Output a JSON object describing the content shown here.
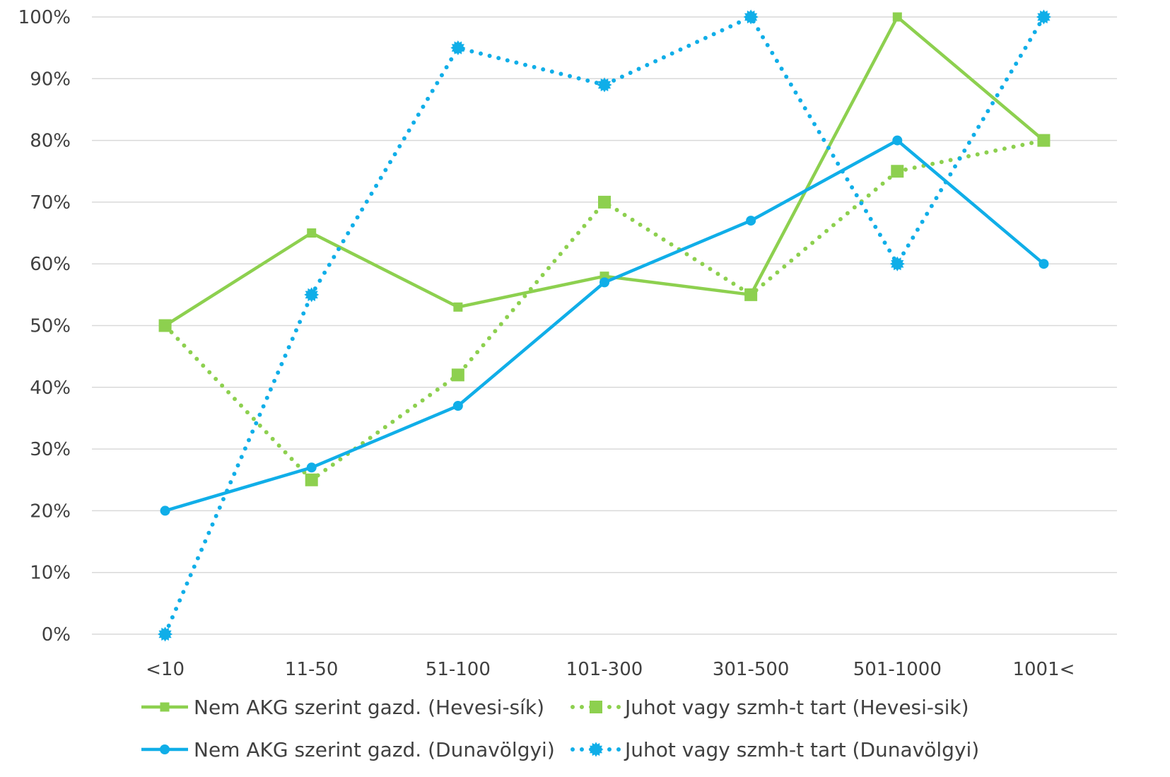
{
  "chart_data": {
    "type": "line",
    "title": "",
    "xlabel": "",
    "ylabel": "",
    "categories": [
      "<10",
      "11-50",
      "51-100",
      "101-300",
      "301-500",
      "501-1000",
      "1001<"
    ],
    "ylim": [
      0,
      100
    ],
    "y_ticks": [
      "0%",
      "10%",
      "20%",
      "30%",
      "40%",
      "50%",
      "60%",
      "70%",
      "80%",
      "90%",
      "100%"
    ],
    "grid": "horizontal",
    "legend_position": "bottom",
    "series": [
      {
        "name": "Nem AKG szerint gazd. (Hevesi-sík)",
        "values": [
          50,
          65,
          53,
          58,
          55,
          100,
          80
        ],
        "color": "#8DD04F",
        "line": "solid",
        "marker": "square-small"
      },
      {
        "name": "Juhot vagy szmh-t tart (Hevesi-sik)",
        "values": [
          50,
          25,
          42,
          70,
          55,
          75,
          80
        ],
        "color": "#8DD04F",
        "line": "dotted",
        "marker": "square"
      },
      {
        "name": "Nem AKG szerint gazd. (Dunavölgyi)",
        "values": [
          20,
          27,
          37,
          57,
          67,
          80,
          60
        ],
        "color": "#10AEE8",
        "line": "solid",
        "marker": "circle"
      },
      {
        "name": "Juhot vagy szmh-t tart (Dunavölgyi)",
        "values": [
          0,
          55,
          95,
          89,
          100,
          60,
          100
        ],
        "color": "#10AEE8",
        "line": "dotted",
        "marker": "circle-spiky"
      }
    ]
  }
}
